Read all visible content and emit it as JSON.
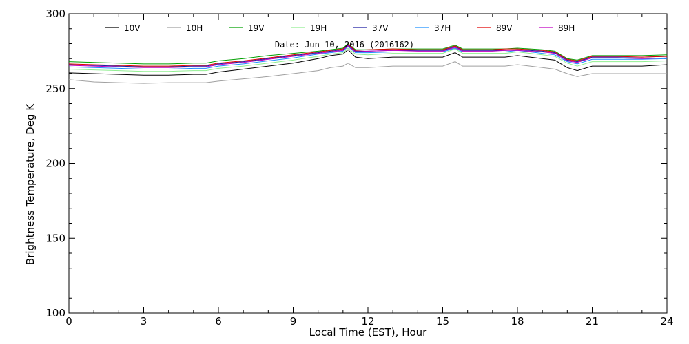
{
  "chart_data": {
    "type": "line",
    "title": "",
    "annotation": "Date: Jun 10, 2016 (2016162)",
    "xlabel": "Local Time (EST), Hour",
    "ylabel": "Brightness Temperature, Deg K",
    "xlim": [
      0,
      24
    ],
    "ylim": [
      100,
      300
    ],
    "xticks": [
      0,
      3,
      6,
      9,
      12,
      15,
      18,
      21,
      24
    ],
    "yticks": [
      100,
      150,
      200,
      250,
      300
    ],
    "grid": false,
    "legend_position": "top",
    "x": [
      0,
      1,
      2,
      3,
      4,
      5,
      5.5,
      6,
      7,
      8,
      9,
      10,
      10.5,
      11,
      11.2,
      11.5,
      12,
      13,
      14,
      15,
      15.5,
      15.8,
      16,
      17,
      17.5,
      18,
      19,
      19.5,
      20,
      20.4,
      21,
      22,
      23,
      24
    ],
    "series": [
      {
        "name": "10V",
        "color": "#000000",
        "values": [
          260.5,
          260,
          259.5,
          259,
          259,
          259.5,
          259.5,
          261,
          263,
          265,
          267,
          270,
          272,
          273,
          276,
          271,
          270,
          271,
          271,
          271,
          274,
          271,
          271,
          271,
          271,
          272,
          270,
          269,
          264,
          262,
          265,
          265,
          265,
          266
        ]
      },
      {
        "name": "10H",
        "color": "#a0a0a0",
        "values": [
          256,
          254.5,
          254,
          253.5,
          254,
          254,
          254,
          255,
          256.5,
          258,
          260,
          262,
          264,
          265,
          267,
          264,
          264,
          265,
          265,
          265,
          268,
          265,
          265,
          265,
          265,
          266,
          264,
          263,
          260,
          258,
          260,
          260,
          260,
          260
        ]
      },
      {
        "name": "19V",
        "color": "#00a000",
        "values": [
          268,
          267.5,
          267,
          266.5,
          266.5,
          267,
          267,
          268.5,
          270,
          272,
          273.5,
          275,
          276,
          277,
          280,
          276,
          276,
          276.5,
          276.5,
          276.5,
          279,
          276.5,
          276.5,
          276.5,
          276.5,
          277,
          276,
          275,
          270,
          269,
          272,
          272,
          272,
          272.5
        ]
      },
      {
        "name": "19H",
        "color": "#90ee90",
        "values": [
          263,
          262.5,
          262,
          261.5,
          261.5,
          262,
          262,
          263.5,
          265,
          267,
          269,
          271.5,
          273,
          274,
          277,
          273,
          272.5,
          273.5,
          273.5,
          273.5,
          276.5,
          273.5,
          273.5,
          273.5,
          273.5,
          274.5,
          272.5,
          271.5,
          267,
          265,
          268,
          268,
          268,
          268.5
        ]
      },
      {
        "name": "37V",
        "color": "#1a1aa0",
        "values": [
          266,
          265.5,
          265,
          264.5,
          264.5,
          265,
          265,
          266.5,
          268,
          270,
          272,
          274,
          275,
          276,
          279,
          275,
          275,
          275.5,
          275.5,
          275.5,
          278,
          275.5,
          275.5,
          275.5,
          275.5,
          276,
          275,
          274,
          269,
          268,
          271,
          271,
          271,
          271.5
        ]
      },
      {
        "name": "37H",
        "color": "#1e90ff",
        "values": [
          264.5,
          264,
          263.5,
          263,
          263,
          263.5,
          263.5,
          265,
          266.5,
          268.5,
          270.5,
          273,
          274,
          275,
          278,
          274,
          274,
          274.5,
          274.5,
          274.5,
          277,
          274.5,
          274.5,
          274.5,
          274.5,
          275.5,
          273.5,
          272.5,
          268,
          266.5,
          269.5,
          269.5,
          269.5,
          270
        ]
      },
      {
        "name": "89V",
        "color": "#e00000",
        "values": [
          266.5,
          266,
          265.5,
          265,
          265,
          265.5,
          265.5,
          267,
          268.5,
          270.5,
          272.5,
          274.5,
          275.5,
          276.5,
          279.5,
          275.5,
          276,
          276.5,
          276,
          276,
          278.5,
          276,
          276,
          276,
          276.5,
          276.5,
          275.5,
          274.5,
          269.5,
          268.5,
          271.5,
          271.5,
          271,
          271.5
        ]
      },
      {
        "name": "89H",
        "color": "#c000c0",
        "values": [
          265.5,
          265,
          264.5,
          264,
          264,
          264.5,
          264.5,
          266,
          267.5,
          269.5,
          271.5,
          273.5,
          274.5,
          275.5,
          278.5,
          274.5,
          275,
          275.5,
          275,
          275,
          277.5,
          275,
          275,
          275,
          275.5,
          275.5,
          274.5,
          273.5,
          268.5,
          267.5,
          270.5,
          270.5,
          270,
          270.5
        ]
      }
    ]
  }
}
